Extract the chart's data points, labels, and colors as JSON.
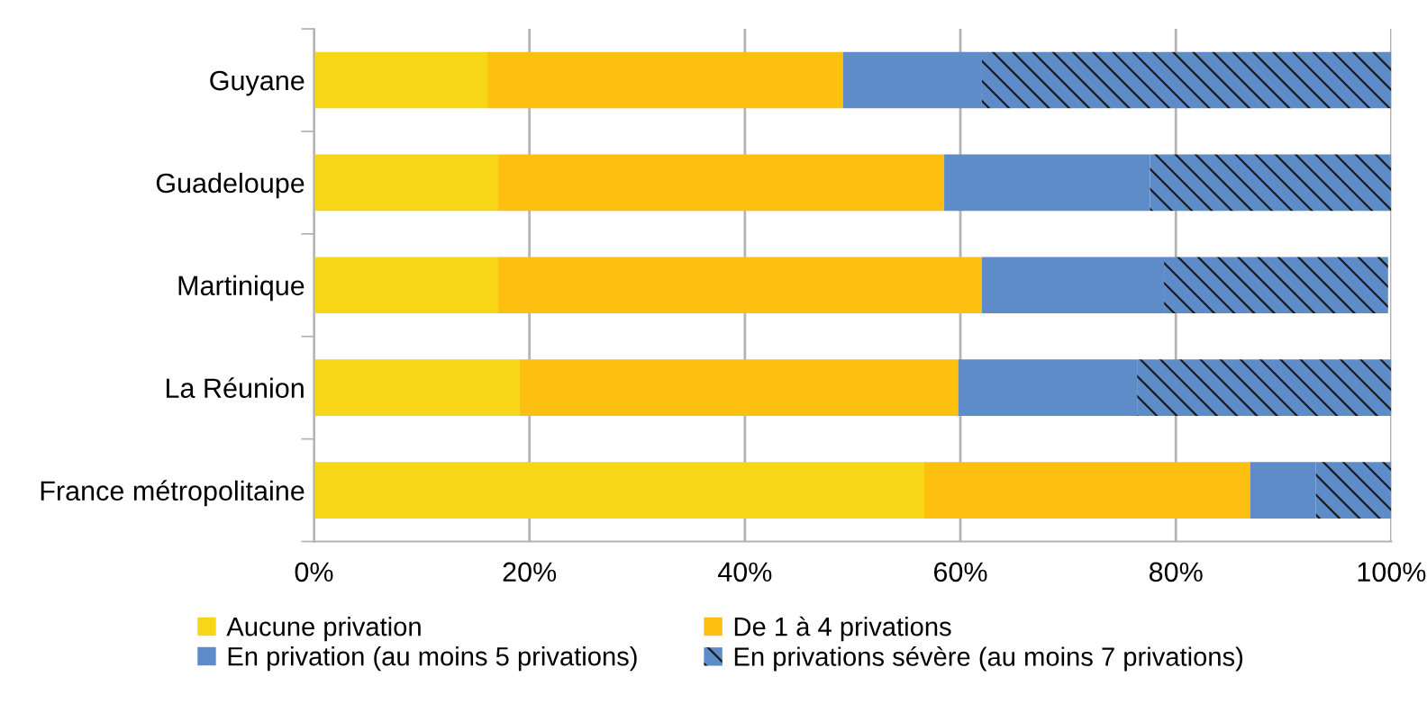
{
  "chart_data": {
    "type": "bar",
    "orientation": "horizontal",
    "stacked": true,
    "categories": [
      "Guyane",
      "Guadeloupe",
      "Martinique",
      "La Réunion",
      "France métropolitaine"
    ],
    "series": [
      {
        "name": "Aucune privation",
        "color": "#f7d517",
        "values": [
          16.1,
          17.1,
          17.1,
          19.1,
          56.6
        ]
      },
      {
        "name": "De 1 à 4 privations",
        "color": "#fdc010",
        "values": [
          33.0,
          41.4,
          44.9,
          40.7,
          30.3
        ]
      },
      {
        "name": "En privation (au moins 5 privations)",
        "color": "#5e8cc8",
        "values": [
          12.9,
          19.1,
          16.9,
          16.6,
          6.1
        ]
      },
      {
        "name": "En privations sévère (au moins 7 privations)",
        "color": "#5e8cc8",
        "values": [
          38.0,
          22.4,
          20.8,
          23.6,
          7.0
        ]
      }
    ],
    "xlim": [
      0,
      100
    ],
    "xticks": [
      {
        "value": 0,
        "label": "0%"
      },
      {
        "value": 20,
        "label": "20%"
      },
      {
        "value": 40,
        "label": "40%"
      },
      {
        "value": 60,
        "label": "60%"
      },
      {
        "value": 80,
        "label": "80%"
      },
      {
        "value": 100,
        "label": "100%"
      }
    ],
    "grid": "x",
    "legend": "bottom"
  }
}
